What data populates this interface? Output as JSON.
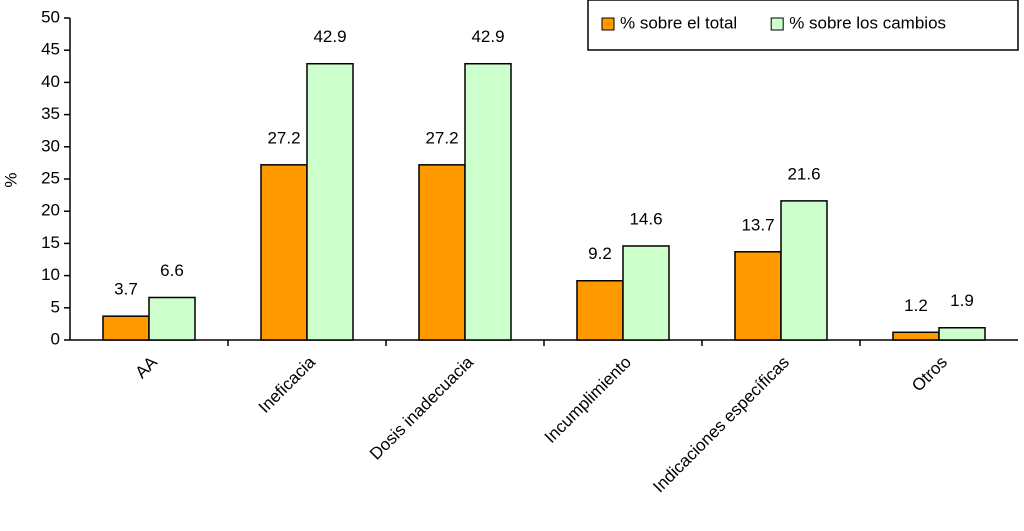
{
  "chart_data": {
    "type": "bar",
    "y_label": "%",
    "categories": [
      "AA",
      "Ineficacia",
      "Dosis inadecuacia",
      "Incumplimiento",
      "Indicaciones específicas",
      "Otros"
    ],
    "series": [
      {
        "name": "% sobre el total",
        "color": "#ff9900",
        "values": [
          3.7,
          27.2,
          27.2,
          9.2,
          13.7,
          1.2
        ]
      },
      {
        "name": "% sobre los cambios",
        "color": "#ccffcc",
        "values": [
          6.6,
          42.9,
          42.9,
          14.6,
          21.6,
          1.9
        ]
      }
    ],
    "ylim": [
      0,
      50
    ],
    "yticks": [
      0,
      5,
      10,
      15,
      20,
      25,
      30,
      35,
      40,
      45,
      50
    ],
    "grid": false,
    "legend": "top-right"
  }
}
